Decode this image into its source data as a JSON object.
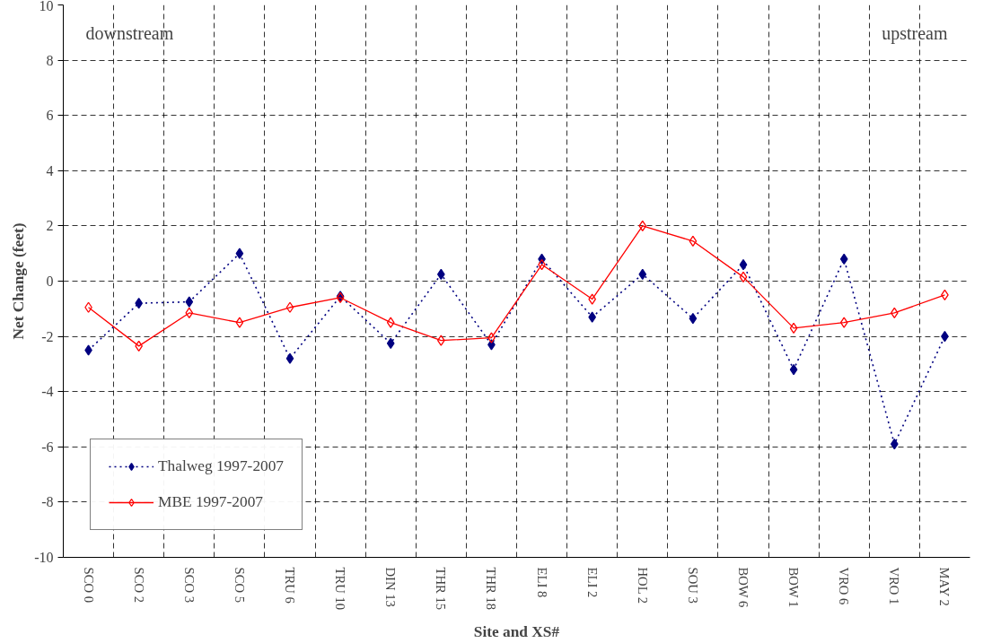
{
  "chart_data": {
    "type": "line",
    "xlabel": "Site and XS#",
    "ylabel": "Net Change (feet)",
    "categories": [
      "SCO 0",
      "SCO 2",
      "SCO 3",
      "SCO 5",
      "TRU 6",
      "TRU 10",
      "DIN 13",
      "THR 15",
      "THR 18",
      "ELI 8",
      "ELI 2",
      "HOL 2",
      "SOU 3",
      "BOW 6",
      "BOW 1",
      "VRO 6",
      "VRO 1",
      "MAY 2"
    ],
    "series": [
      {
        "name": "Thalweg 1997-2007",
        "color": "#000080",
        "marker": "diamond",
        "line_style": "dotted",
        "values": [
          -2.5,
          -0.8,
          -0.75,
          1.0,
          -2.8,
          -0.55,
          -2.25,
          0.25,
          -2.3,
          0.8,
          -1.3,
          0.25,
          -1.35,
          0.6,
          -3.2,
          0.8,
          -5.9,
          -2.0
        ]
      },
      {
        "name": "MBE 1997-2007",
        "color": "#ff0000",
        "marker": "diamond",
        "line_style": "solid",
        "values": [
          -0.95,
          -2.35,
          -1.15,
          -1.5,
          -0.95,
          -0.6,
          -1.5,
          -2.15,
          -2.05,
          0.6,
          -0.65,
          2.0,
          1.45,
          0.15,
          -1.7,
          -1.5,
          -1.15,
          -0.5
        ]
      }
    ],
    "ylim": [
      -10,
      10
    ],
    "yticks": [
      -10,
      -8,
      -6,
      -4,
      -2,
      0,
      2,
      4,
      6,
      8,
      10
    ],
    "grid": true,
    "legend": "bottom left",
    "annotations": [
      "downstream",
      "upstream"
    ]
  }
}
